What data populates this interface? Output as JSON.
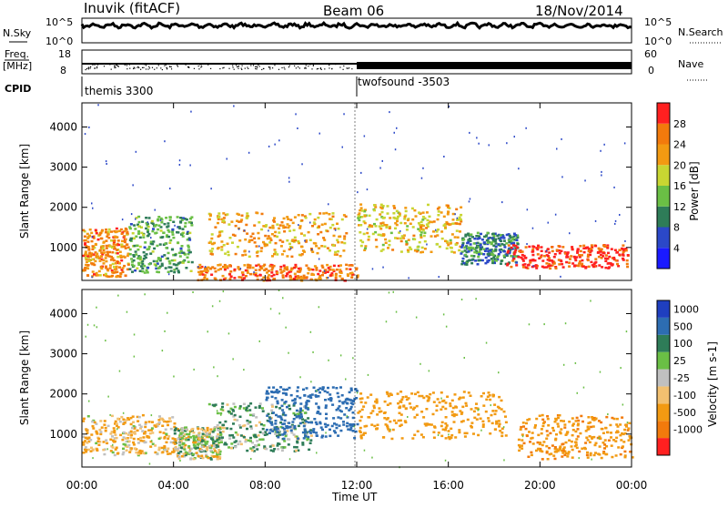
{
  "header": {
    "station": "Inuvik (fitACF)",
    "beam": "Beam 06",
    "date": "18/Nov/2014"
  },
  "noise_panel": {
    "left_label": "N.Sky",
    "right_label": "N.Search",
    "left_ticks": [
      "10^5",
      "10^0"
    ],
    "right_ticks": [
      "10^5",
      "10^0"
    ]
  },
  "freq_panel": {
    "left_label_top": "Freq.",
    "left_label_unit": "[MHz]",
    "right_label": "Nave",
    "left_ticks": [
      "18",
      "8"
    ],
    "right_ticks": [
      "60",
      "0"
    ]
  },
  "cpid_panel": {
    "label": "CPID",
    "programs": [
      "themis 3300",
      "twofsound -3503"
    ],
    "program_start_hours": [
      0,
      12
    ]
  },
  "axes": {
    "ylabel": "Slant Range [km]",
    "xlabel": "Time UT",
    "yticks": [
      "1000",
      "2000",
      "3000",
      "4000"
    ],
    "ytick_values": [
      1000,
      2000,
      3000,
      4000
    ],
    "xticks": [
      "00:00",
      "04:00",
      "08:00",
      "12:00",
      "16:00",
      "20:00",
      "00:00"
    ],
    "xtick_hours": [
      0,
      4,
      8,
      12,
      16,
      20,
      24
    ]
  },
  "chart_data": [
    {
      "type": "heatmap",
      "title": "Power",
      "x_range_hours": [
        0,
        24
      ],
      "ylim": [
        180,
        4600
      ],
      "colorbar_label": "Power [dB]",
      "colorbar_ticks": [
        "4",
        "8",
        "12",
        "16",
        "20",
        "24",
        "28"
      ],
      "colorbar_colors": [
        "#1a1aff",
        "#2b48c8",
        "#2e7c58",
        "#6abf45",
        "#c8d632",
        "#f29a12",
        "#f27a0c",
        "#ff2020"
      ],
      "scatter_regions_km_by_hour": [
        {
          "t": [
            0.0,
            2.0
          ],
          "r": [
            300,
            1500
          ],
          "level": 24
        },
        {
          "t": [
            2.0,
            4.8
          ],
          "r": [
            400,
            1800
          ],
          "level": 12
        },
        {
          "t": [
            5.0,
            12.0
          ],
          "r": [
            200,
            600
          ],
          "level": 26
        },
        {
          "t": [
            5.5,
            11.5
          ],
          "r": [
            800,
            1900
          ],
          "level": 22
        },
        {
          "t": [
            12.0,
            16.5
          ],
          "r": [
            900,
            2100
          ],
          "level": 20
        },
        {
          "t": [
            16.5,
            19.0
          ],
          "r": [
            600,
            1400
          ],
          "level": 10
        },
        {
          "t": [
            18.5,
            23.8
          ],
          "r": [
            500,
            1100
          ],
          "level": 30
        }
      ]
    },
    {
      "type": "heatmap",
      "title": "Velocity",
      "x_range_hours": [
        0,
        24
      ],
      "ylim": [
        180,
        4600
      ],
      "colorbar_label": "Velocity [m s-1]",
      "colorbar_ticks": [
        "1000",
        "500",
        "100",
        "25",
        "-25",
        "-100",
        "-500",
        "-1000"
      ],
      "colorbar_colors": [
        "#1f3fbf",
        "#2d6db2",
        "#2e7c58",
        "#6abf45",
        "#c0c0c0",
        "#f2c070",
        "#f29a12",
        "#f27a0c",
        "#ff2020"
      ],
      "scatter_regions_km_by_hour": [
        {
          "t": [
            0.0,
            4.0
          ],
          "r": [
            500,
            1500
          ],
          "level": -100
        },
        {
          "t": [
            4.0,
            6.0
          ],
          "r": [
            400,
            1200
          ],
          "level": 0
        },
        {
          "t": [
            5.5,
            10.0
          ],
          "r": [
            600,
            1800
          ],
          "level": 100
        },
        {
          "t": [
            8.0,
            12.0
          ],
          "r": [
            900,
            2200
          ],
          "level": 800
        },
        {
          "t": [
            12.0,
            18.5
          ],
          "r": [
            900,
            2100
          ],
          "level": -300
        },
        {
          "t": [
            19.0,
            24.0
          ],
          "r": [
            400,
            1500
          ],
          "level": -400
        }
      ]
    }
  ]
}
